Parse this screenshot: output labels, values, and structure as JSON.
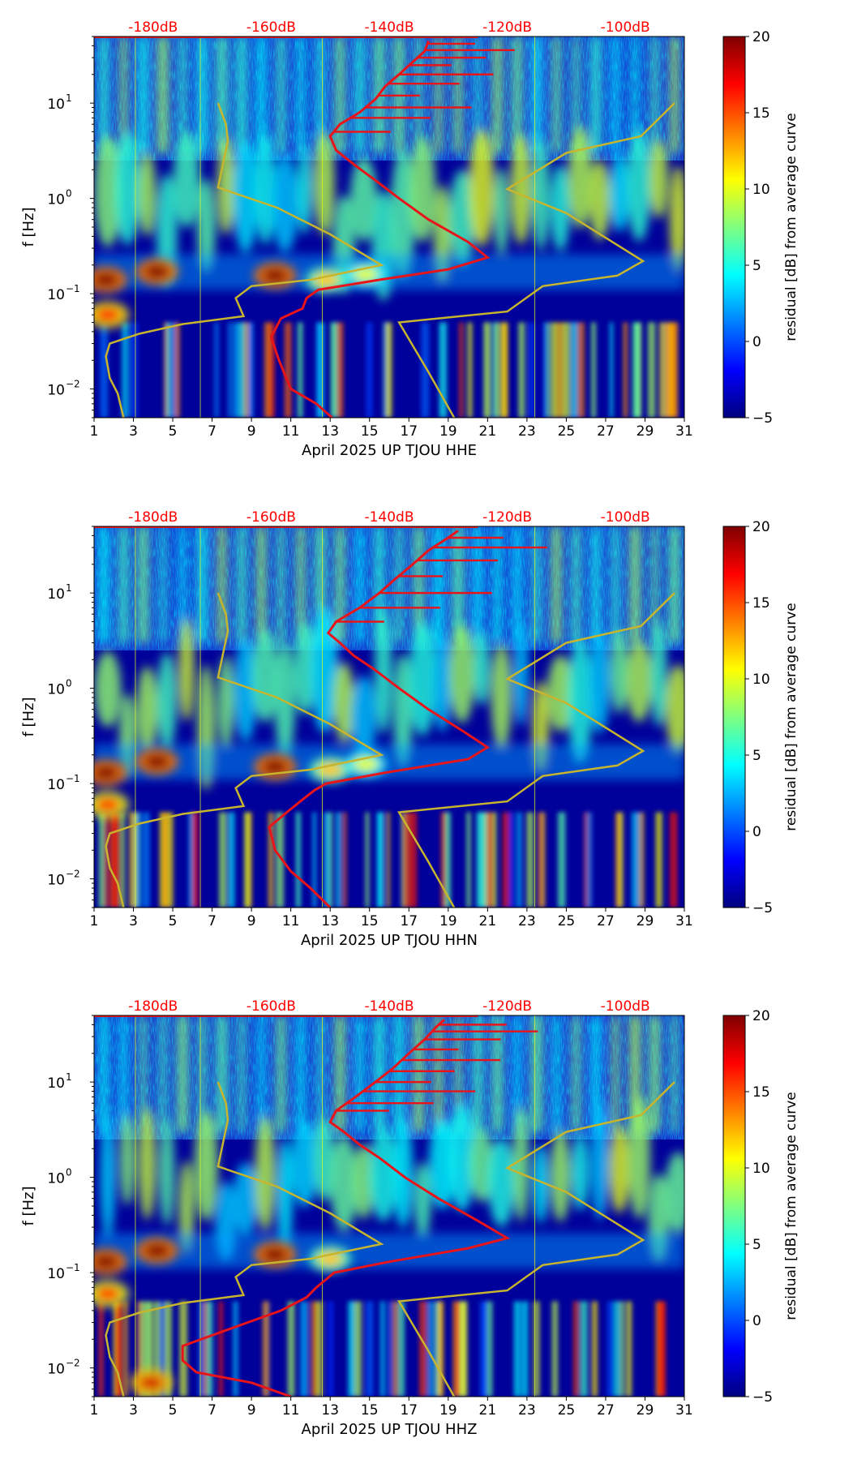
{
  "chart_data": [
    {
      "type": "heatmap",
      "title": "",
      "xlabel": "April 2025 UP TJOU  HHE",
      "ylabel": "f [Hz]",
      "xlim": [
        1,
        31
      ],
      "ylim": [
        0.005,
        50
      ],
      "yscale": "log",
      "x_ticks": [
        "1",
        "3",
        "5",
        "7",
        "9",
        "11",
        "13",
        "15",
        "17",
        "19",
        "21",
        "23",
        "25",
        "27",
        "29",
        "31"
      ],
      "y_ticks": [
        {
          "value": 0.01,
          "base": "10",
          "exp": "−2"
        },
        {
          "value": 0.1,
          "base": "10",
          "exp": "−1"
        },
        {
          "value": 1,
          "base": "10",
          "exp": "0"
        },
        {
          "value": 10,
          "base": "10",
          "exp": "1"
        }
      ],
      "top_axis": {
        "labels": [
          "-180dB",
          "-160dB",
          "-140dB",
          "-120dB",
          "-100dB"
        ],
        "day_positions": [
          4,
          10,
          16,
          22,
          28
        ],
        "color": "#ff0000"
      },
      "colorbar": {
        "label": "residual [dB] from average curve",
        "min": -5,
        "max": 20,
        "ticks": [
          "−5",
          "0",
          "5",
          "10",
          "15",
          "20"
        ]
      },
      "series": [
        {
          "name": "average PSD",
          "color": "#e8141a",
          "points": [
            [
              13.1,
              0.005
            ],
            [
              12.3,
              0.007
            ],
            [
              11.0,
              0.01
            ],
            [
              10.4,
              0.02
            ],
            [
              10.0,
              0.035
            ],
            [
              10.5,
              0.055
            ],
            [
              11.6,
              0.07
            ],
            [
              11.8,
              0.09
            ],
            [
              12.4,
              0.11
            ],
            [
              15.5,
              0.14
            ],
            [
              19.0,
              0.18
            ],
            [
              21.0,
              0.24
            ],
            [
              20.0,
              0.35
            ],
            [
              18.0,
              0.6
            ],
            [
              16.5,
              1.0
            ],
            [
              15.2,
              1.6
            ],
            [
              14.3,
              2.2
            ],
            [
              13.3,
              3.2
            ],
            [
              13.0,
              4.5
            ],
            [
              13.5,
              6.0
            ],
            [
              14.5,
              8.0
            ],
            [
              15.3,
              11
            ],
            [
              15.8,
              15
            ],
            [
              16.5,
              20
            ],
            [
              17.2,
              27
            ],
            [
              17.8,
              35
            ],
            [
              18.0,
              45
            ]
          ]
        },
        {
          "name": "reference curves",
          "color": "#c8b52e",
          "points": [
            [
              2.5,
              0.005
            ],
            [
              2.2,
              0.009
            ],
            [
              1.8,
              0.013
            ],
            [
              1.6,
              0.022
            ],
            [
              1.8,
              0.03
            ],
            [
              3.3,
              0.038
            ],
            [
              5.5,
              0.048
            ],
            [
              8.6,
              0.058
            ],
            [
              8.2,
              0.09
            ],
            [
              9.0,
              0.12
            ],
            [
              12.0,
              0.14
            ],
            [
              15.6,
              0.2
            ],
            [
              13.0,
              0.42
            ],
            [
              10.3,
              0.8
            ],
            [
              7.3,
              1.3
            ],
            [
              7.8,
              4.0
            ],
            [
              7.7,
              6.0
            ],
            [
              7.3,
              10
            ]
          ]
        },
        {
          "name": "reference curves (right)",
          "color": "#c8b52e",
          "points": [
            [
              19.3,
              0.005
            ],
            [
              18.0,
              0.015
            ],
            [
              16.5,
              0.05
            ],
            [
              22.0,
              0.065
            ],
            [
              23.8,
              0.12
            ],
            [
              27.6,
              0.155
            ],
            [
              28.9,
              0.22
            ],
            [
              25.0,
              0.7
            ],
            [
              22.0,
              1.25
            ],
            [
              25.0,
              3.0
            ],
            [
              28.8,
              4.5
            ],
            [
              30.5,
              10
            ]
          ]
        }
      ],
      "red_spikes_hz": [
        5,
        7,
        9,
        12,
        16,
        20,
        25,
        30,
        36,
        42
      ],
      "hotspots": [
        {
          "day": 1.6,
          "hz": 0.14,
          "level": 20
        },
        {
          "day": 1.7,
          "hz": 0.06,
          "level": 17
        },
        {
          "day": 4.2,
          "hz": 0.17,
          "level": 20
        },
        {
          "day": 10.2,
          "hz": 0.155,
          "level": 20
        },
        {
          "day": 12.8,
          "hz": 0.14,
          "level": 12
        },
        {
          "day": 14.8,
          "hz": 0.16,
          "level": 10
        }
      ]
    },
    {
      "type": "heatmap",
      "title": "",
      "xlabel": "April 2025 UP TJOU  HHN",
      "ylabel": "f [Hz]",
      "xlim": [
        1,
        31
      ],
      "ylim": [
        0.005,
        50
      ],
      "yscale": "log",
      "x_ticks": [
        "1",
        "3",
        "5",
        "7",
        "9",
        "11",
        "13",
        "15",
        "17",
        "19",
        "21",
        "23",
        "25",
        "27",
        "29",
        "31"
      ],
      "y_ticks": [
        {
          "value": 0.01,
          "base": "10",
          "exp": "−2"
        },
        {
          "value": 0.1,
          "base": "10",
          "exp": "−1"
        },
        {
          "value": 1,
          "base": "10",
          "exp": "0"
        },
        {
          "value": 10,
          "base": "10",
          "exp": "1"
        }
      ],
      "top_axis": {
        "labels": [
          "-180dB",
          "-160dB",
          "-140dB",
          "-120dB",
          "-100dB"
        ],
        "day_positions": [
          4,
          10,
          16,
          22,
          28
        ],
        "color": "#ff0000"
      },
      "colorbar": {
        "label": "residual [dB] from average curve",
        "min": -5,
        "max": 20,
        "ticks": [
          "−5",
          "0",
          "5",
          "10",
          "15",
          "20"
        ]
      },
      "series": [
        {
          "name": "average PSD",
          "color": "#e8141a",
          "points": [
            [
              13.0,
              0.005
            ],
            [
              12.0,
              0.008
            ],
            [
              11.0,
              0.012
            ],
            [
              10.2,
              0.02
            ],
            [
              9.9,
              0.035
            ],
            [
              10.8,
              0.05
            ],
            [
              11.6,
              0.068
            ],
            [
              12.2,
              0.085
            ],
            [
              12.8,
              0.1
            ],
            [
              15.8,
              0.13
            ],
            [
              20.0,
              0.18
            ],
            [
              21.0,
              0.24
            ],
            [
              19.8,
              0.35
            ],
            [
              18.0,
              0.6
            ],
            [
              16.5,
              1.0
            ],
            [
              15.2,
              1.6
            ],
            [
              14.2,
              2.2
            ],
            [
              13.5,
              3.0
            ],
            [
              12.9,
              3.8
            ],
            [
              13.3,
              5.0
            ],
            [
              14.5,
              7.0
            ],
            [
              15.5,
              10
            ],
            [
              16.3,
              14
            ],
            [
              17.2,
              20
            ],
            [
              18.0,
              28
            ],
            [
              19.0,
              38
            ],
            [
              19.5,
              45
            ]
          ]
        },
        {
          "name": "reference curves",
          "color": "#c8b52e",
          "points": [
            [
              2.5,
              0.005
            ],
            [
              2.2,
              0.009
            ],
            [
              1.8,
              0.013
            ],
            [
              1.6,
              0.022
            ],
            [
              1.8,
              0.03
            ],
            [
              3.3,
              0.038
            ],
            [
              5.5,
              0.048
            ],
            [
              8.6,
              0.058
            ],
            [
              8.2,
              0.09
            ],
            [
              9.0,
              0.12
            ],
            [
              12.0,
              0.14
            ],
            [
              15.6,
              0.2
            ],
            [
              13.0,
              0.42
            ],
            [
              10.3,
              0.8
            ],
            [
              7.3,
              1.3
            ],
            [
              7.8,
              4.0
            ],
            [
              7.7,
              6.0
            ],
            [
              7.3,
              10
            ]
          ]
        },
        {
          "name": "reference curves (right)",
          "color": "#c8b52e",
          "points": [
            [
              19.3,
              0.005
            ],
            [
              18.0,
              0.015
            ],
            [
              16.5,
              0.05
            ],
            [
              22.0,
              0.065
            ],
            [
              23.8,
              0.12
            ],
            [
              27.6,
              0.155
            ],
            [
              28.9,
              0.22
            ],
            [
              25.0,
              0.7
            ],
            [
              22.0,
              1.25
            ],
            [
              25.0,
              3.0
            ],
            [
              28.8,
              4.5
            ],
            [
              30.5,
              10
            ]
          ]
        }
      ],
      "red_spikes_hz": [
        5,
        7,
        10,
        15,
        22,
        30,
        38
      ],
      "hotspots": [
        {
          "day": 1.6,
          "hz": 0.13,
          "level": 20
        },
        {
          "day": 1.7,
          "hz": 0.06,
          "level": 16
        },
        {
          "day": 4.2,
          "hz": 0.17,
          "level": 20
        },
        {
          "day": 10.2,
          "hz": 0.15,
          "level": 20
        },
        {
          "day": 13.0,
          "hz": 0.14,
          "level": 12
        },
        {
          "day": 14.8,
          "hz": 0.16,
          "level": 10
        }
      ]
    },
    {
      "type": "heatmap",
      "title": "",
      "xlabel": "April 2025 UP TJOU  HHZ",
      "ylabel": "f [Hz]",
      "xlim": [
        1,
        31
      ],
      "ylim": [
        0.005,
        50
      ],
      "yscale": "log",
      "x_ticks": [
        "1",
        "3",
        "5",
        "7",
        "9",
        "11",
        "13",
        "15",
        "17",
        "19",
        "21",
        "23",
        "25",
        "27",
        "29",
        "31"
      ],
      "y_ticks": [
        {
          "value": 0.01,
          "base": "10",
          "exp": "−2"
        },
        {
          "value": 0.1,
          "base": "10",
          "exp": "−1"
        },
        {
          "value": 1,
          "base": "10",
          "exp": "0"
        },
        {
          "value": 10,
          "base": "10",
          "exp": "1"
        }
      ],
      "top_axis": {
        "labels": [
          "-180dB",
          "-160dB",
          "-140dB",
          "-120dB",
          "-100dB"
        ],
        "day_positions": [
          4,
          10,
          16,
          22,
          28
        ],
        "color": "#ff0000"
      },
      "colorbar": {
        "label": "residual [dB] from average curve",
        "min": -5,
        "max": 20,
        "ticks": [
          "−5",
          "0",
          "5",
          "10",
          "15",
          "20"
        ]
      },
      "series": [
        {
          "name": "average PSD",
          "color": "#e8141a",
          "points": [
            [
              11.0,
              0.005
            ],
            [
              9.0,
              0.007
            ],
            [
              6.2,
              0.009
            ],
            [
              5.5,
              0.012
            ],
            [
              5.5,
              0.017
            ],
            [
              7.0,
              0.022
            ],
            [
              8.8,
              0.03
            ],
            [
              10.5,
              0.04
            ],
            [
              11.8,
              0.055
            ],
            [
              12.3,
              0.07
            ],
            [
              12.8,
              0.085
            ],
            [
              13.2,
              0.1
            ],
            [
              16.0,
              0.13
            ],
            [
              20.0,
              0.18
            ],
            [
              22.0,
              0.23
            ],
            [
              20.5,
              0.35
            ],
            [
              18.5,
              0.6
            ],
            [
              16.8,
              1.0
            ],
            [
              15.5,
              1.6
            ],
            [
              14.5,
              2.2
            ],
            [
              13.7,
              3.0
            ],
            [
              13.0,
              3.8
            ],
            [
              13.3,
              5.0
            ],
            [
              14.3,
              7.0
            ],
            [
              15.3,
              10
            ],
            [
              16.2,
              14
            ],
            [
              17.0,
              20
            ],
            [
              17.8,
              28
            ],
            [
              18.4,
              38
            ],
            [
              18.8,
              45
            ]
          ]
        },
        {
          "name": "reference curves",
          "color": "#c8b52e",
          "points": [
            [
              2.5,
              0.005
            ],
            [
              2.2,
              0.009
            ],
            [
              1.8,
              0.013
            ],
            [
              1.6,
              0.022
            ],
            [
              1.8,
              0.03
            ],
            [
              3.3,
              0.038
            ],
            [
              5.5,
              0.048
            ],
            [
              8.6,
              0.058
            ],
            [
              8.2,
              0.09
            ],
            [
              9.0,
              0.12
            ],
            [
              12.0,
              0.14
            ],
            [
              15.6,
              0.2
            ],
            [
              13.0,
              0.42
            ],
            [
              10.3,
              0.8
            ],
            [
              7.3,
              1.3
            ],
            [
              7.8,
              4.0
            ],
            [
              7.7,
              6.0
            ],
            [
              7.3,
              10
            ]
          ]
        },
        {
          "name": "reference curves (right)",
          "color": "#c8b52e",
          "points": [
            [
              19.3,
              0.005
            ],
            [
              18.0,
              0.015
            ],
            [
              16.5,
              0.05
            ],
            [
              22.0,
              0.065
            ],
            [
              23.8,
              0.12
            ],
            [
              27.6,
              0.155
            ],
            [
              28.9,
              0.22
            ],
            [
              25.0,
              0.7
            ],
            [
              22.0,
              1.25
            ],
            [
              25.0,
              3.0
            ],
            [
              28.8,
              4.5
            ],
            [
              30.5,
              10
            ]
          ]
        }
      ],
      "red_spikes_hz": [
        5,
        6,
        8,
        10,
        13,
        17,
        22,
        28,
        34,
        40
      ],
      "hotspots": [
        {
          "day": 1.6,
          "hz": 0.13,
          "level": 20
        },
        {
          "day": 1.7,
          "hz": 0.06,
          "level": 16
        },
        {
          "day": 4.2,
          "hz": 0.17,
          "level": 20
        },
        {
          "day": 10.2,
          "hz": 0.155,
          "level": 20
        },
        {
          "day": 3.9,
          "hz": 0.007,
          "level": 18
        },
        {
          "day": 13.0,
          "hz": 0.14,
          "level": 12
        }
      ]
    }
  ]
}
